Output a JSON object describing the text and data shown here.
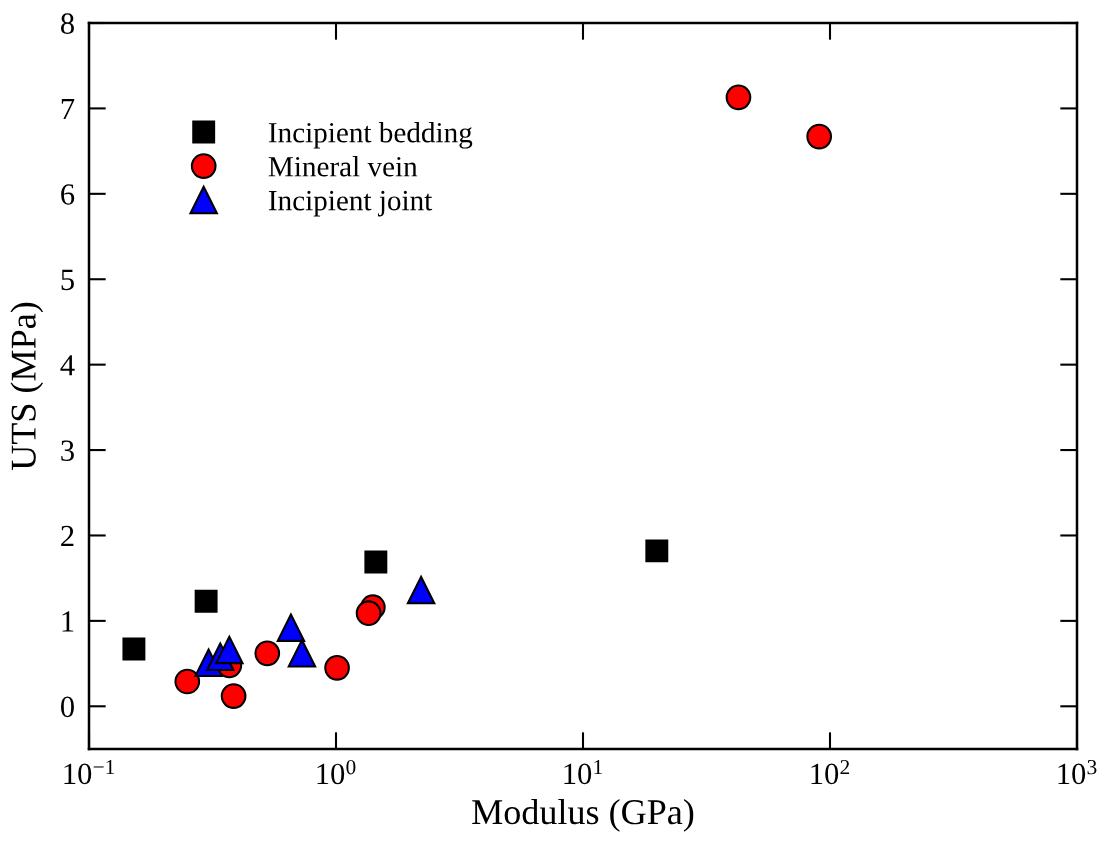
{
  "chart_data": {
    "type": "scatter",
    "xlabel": "Modulus (GPa)",
    "ylabel": "UTS (MPa)",
    "log": "x",
    "xlim": [
      0.1,
      1000
    ],
    "xticks": [
      {
        "value": 0.1,
        "label": "10$^{−1}$"
      },
      {
        "value": 1,
        "label": "10$^{0}$"
      },
      {
        "value": 10,
        "label": "10$^{1}$"
      },
      {
        "value": 100,
        "label": "10$^{2}$"
      },
      {
        "value": 1000,
        "label": "10$^{3}$"
      }
    ],
    "ylim": [
      -0.5,
      8
    ],
    "yticks": [
      0,
      1,
      2,
      3,
      4,
      5,
      6,
      7,
      8
    ],
    "grid": false,
    "legend": "top left",
    "series": [
      {
        "name": "Incipient bedding",
        "color": "#000000",
        "marker": "square",
        "x": [
          0.152,
          0.298,
          1.45,
          19.9
        ],
        "values": [
          0.67,
          1.23,
          1.69,
          1.82
        ]
      },
      {
        "name": "Mineral vein",
        "color": "#ff0000",
        "marker": "circle",
        "x": [
          0.25,
          0.385,
          0.37,
          0.527,
          1.01,
          1.41,
          1.355,
          42.6,
          90.4
        ],
        "values": [
          0.29,
          0.12,
          0.48,
          0.62,
          0.45,
          1.16,
          1.09,
          7.13,
          6.67
        ]
      },
      {
        "name": "Incipient joint",
        "color": "#0000ff",
        "marker": "triangle",
        "x": [
          0.305,
          0.34,
          0.37,
          0.657,
          0.728,
          2.21
        ],
        "values": [
          0.51,
          0.58,
          0.66,
          0.92,
          0.62,
          1.36
        ]
      }
    ]
  }
}
